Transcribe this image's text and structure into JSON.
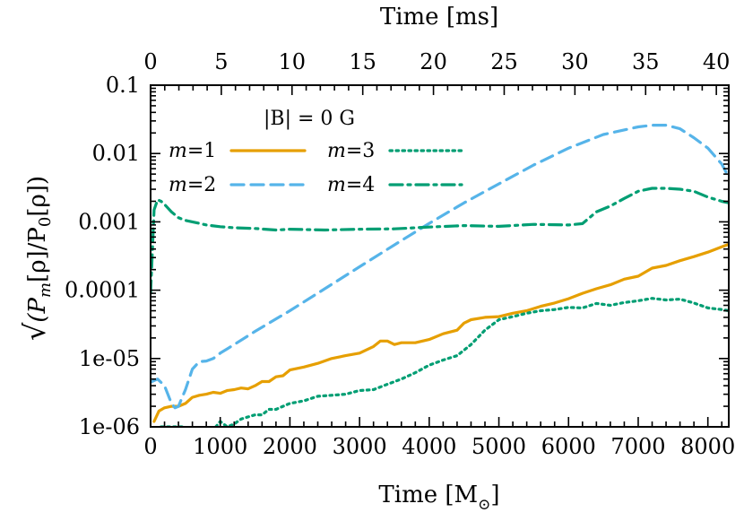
{
  "chart_data": {
    "type": "line",
    "title": "",
    "xlabel_main": "Time [M",
    "xlabel_sub": "⊙",
    "xlabel_end": "]",
    "xlabel_top": "Time [ms]",
    "ylabel_parts": {
      "root": "√",
      "open": "(P",
      "m": "m",
      "rho1": "[ρ]/P",
      "zero": "0",
      "rho2": "[ρ])"
    },
    "xlim": [
      0,
      8300
    ],
    "ylim": [
      1e-06,
      0.1
    ],
    "yscale": "log",
    "x_ticks": [
      "0",
      "1000",
      "2000",
      "3000",
      "4000",
      "5000",
      "6000",
      "7000",
      "8000"
    ],
    "x_tick_values": [
      0,
      1000,
      2000,
      3000,
      4000,
      5000,
      6000,
      7000,
      8000
    ],
    "x_top_ticks": [
      "0",
      "5",
      "10",
      "15",
      "20",
      "25",
      "30",
      "35",
      "40"
    ],
    "x_top_tick_values_ms": [
      0,
      5,
      10,
      15,
      20,
      25,
      30,
      35,
      40
    ],
    "ms_per_M": 0.004925,
    "y_ticks": [
      "1e-06",
      "1e-05",
      "0.0001",
      "0.001",
      "0.01",
      "0.1"
    ],
    "y_tick_values": [
      1e-06,
      1e-05,
      0.0001,
      0.001,
      0.01,
      0.1
    ],
    "annotation": "|B| = 0 G",
    "series": [
      {
        "name": "m=1",
        "label_m": "m",
        "label_val": "=1",
        "color": "#e69f00",
        "dash": "solid",
        "x": [
          50,
          120,
          200,
          300,
          400,
          500,
          600,
          700,
          800,
          900,
          1000,
          1100,
          1200,
          1300,
          1400,
          1500,
          1600,
          1700,
          1800,
          1900,
          2000,
          2200,
          2400,
          2600,
          2800,
          3000,
          3200,
          3300,
          3400,
          3500,
          3600,
          3800,
          4000,
          4200,
          4400,
          4500,
          4600,
          4800,
          5000,
          5200,
          5400,
          5600,
          5800,
          6000,
          6200,
          6400,
          6600,
          6800,
          7000,
          7200,
          7400,
          7600,
          7800,
          8000,
          8200,
          8300
        ],
        "values": [
          1.2e-06,
          1.7e-06,
          1.9e-06,
          2e-06,
          2e-06,
          2.2e-06,
          2.7e-06,
          2.9e-06,
          3e-06,
          3.2e-06,
          3.1e-06,
          3.4e-06,
          3.5e-06,
          3.7e-06,
          3.6e-06,
          4e-06,
          4.6e-06,
          4.6e-06,
          5.4e-06,
          5.6e-06,
          6.8e-06,
          7.5e-06,
          8.5e-06,
          1e-05,
          1.1e-05,
          1.2e-05,
          1.5e-05,
          1.8e-05,
          1.8e-05,
          1.6e-05,
          1.7e-05,
          1.7e-05,
          1.9e-05,
          2.3e-05,
          2.6e-05,
          3.3e-05,
          3.7e-05,
          4e-05,
          4.1e-05,
          4.6e-05,
          5e-05,
          5.8e-05,
          6.5e-05,
          7.5e-05,
          9e-05,
          0.000105,
          0.00012,
          0.000145,
          0.00016,
          0.00021,
          0.00023,
          0.00027,
          0.00031,
          0.00036,
          0.00043,
          0.00047
        ]
      },
      {
        "name": "m=2",
        "label_m": "m",
        "label_val": "=2",
        "color": "#56b4e9",
        "dash": "dashed",
        "x": [
          0,
          100,
          200,
          300,
          350,
          400,
          500,
          600,
          700,
          800,
          900,
          1000,
          1200,
          1500,
          2000,
          2500,
          3000,
          3500,
          4000,
          4500,
          5000,
          5500,
          6000,
          6500,
          7000,
          7200,
          7400,
          7600,
          7800,
          8000,
          8200,
          8300
        ],
        "values": [
          4.5e-06,
          5e-06,
          4e-06,
          2.2e-06,
          1.9e-06,
          2e-06,
          3.5e-06,
          7e-06,
          9e-06,
          9.2e-06,
          1e-05,
          1.2e-05,
          1.6e-05,
          2.5e-05,
          5e-05,
          0.000105,
          0.00022,
          0.00046,
          0.00095,
          0.0019,
          0.0036,
          0.0068,
          0.012,
          0.019,
          0.0245,
          0.026,
          0.026,
          0.023,
          0.017,
          0.012,
          0.007,
          0.0045
        ]
      },
      {
        "name": "m=3",
        "label_m": "m",
        "label_val": "=3",
        "color": "#009e73",
        "dash": "dotted",
        "x": [
          150,
          250,
          350,
          450,
          600,
          700,
          800,
          900,
          1000,
          1100,
          1200,
          1300,
          1400,
          1500,
          1600,
          1700,
          1800,
          1900,
          2000,
          2200,
          2400,
          2600,
          2800,
          3000,
          3200,
          3400,
          3600,
          3800,
          4000,
          4200,
          4400,
          4600,
          4800,
          5000,
          5200,
          5400,
          5600,
          5800,
          6000,
          6200,
          6400,
          6600,
          6800,
          7000,
          7200,
          7400,
          7600,
          7800,
          8000,
          8200,
          8300
        ],
        "values": [
          1e-06,
          1e-06,
          1e-06,
          1e-06,
          9e-07,
          9e-07,
          9e-07,
          9e-07,
          1.2e-06,
          1e-06,
          1.1e-06,
          1.3e-06,
          1.4e-06,
          1.5e-06,
          1.5e-06,
          1.8e-06,
          1.8e-06,
          2e-06,
          2.2e-06,
          2.4e-06,
          2.8e-06,
          2.9e-06,
          3e-06,
          3.4e-06,
          3.5e-06,
          4.2e-06,
          5e-06,
          6.2e-06,
          8e-06,
          9.5e-06,
          1.1e-05,
          1.6e-05,
          2.6e-05,
          3.7e-05,
          4.1e-05,
          4.6e-05,
          5e-05,
          5.2e-05,
          5.6e-05,
          5.5e-05,
          6.4e-05,
          6e-05,
          6.6e-05,
          7e-05,
          7.6e-05,
          7.2e-05,
          7.4e-05,
          6.5e-05,
          5.5e-05,
          5.2e-05,
          5e-05
        ]
      },
      {
        "name": "m=4",
        "label_m": "m",
        "label_val": "=4",
        "color": "#009e73",
        "dash": "dashdot",
        "x": [
          0,
          50,
          100,
          150,
          200,
          300,
          400,
          500,
          600,
          700,
          800,
          1000,
          1200,
          1500,
          1800,
          2000,
          2500,
          3000,
          3500,
          4000,
          4500,
          5000,
          5500,
          6000,
          6200,
          6400,
          6600,
          6800,
          7000,
          7200,
          7400,
          7600,
          7800,
          8000,
          8200,
          8300
        ],
        "values": [
          9e-05,
          0.0015,
          0.0021,
          0.002,
          0.0018,
          0.0014,
          0.00115,
          0.00105,
          0.001,
          0.00095,
          0.0009,
          0.00085,
          0.00082,
          0.0008,
          0.00076,
          0.00078,
          0.00076,
          0.00078,
          0.00079,
          0.00084,
          0.00088,
          0.00086,
          0.00092,
          0.0009,
          0.00094,
          0.0014,
          0.0017,
          0.0022,
          0.0028,
          0.0031,
          0.0031,
          0.003,
          0.0028,
          0.0023,
          0.002,
          0.0019
        ]
      }
    ]
  }
}
